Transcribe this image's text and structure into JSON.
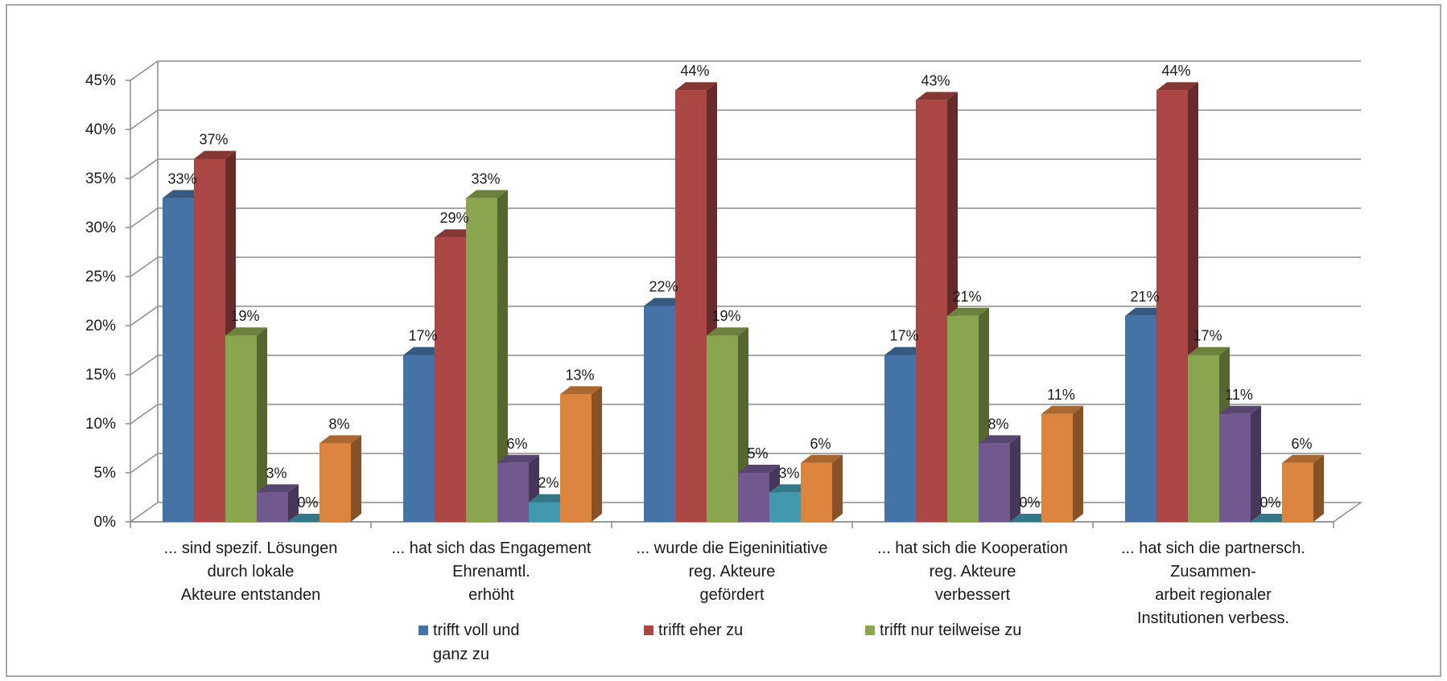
{
  "chart_data": {
    "type": "bar",
    "categories": [
      [
        "... sind spezif. Lösungen",
        "durch lokale",
        "Akteure entstanden"
      ],
      [
        "... hat sich das Engagement",
        "Ehrenamtl.",
        "erhöht"
      ],
      [
        "... wurde die Eigeninitiative",
        "reg. Akteure",
        "gefördert"
      ],
      [
        "... hat sich die Kooperation",
        "reg. Akteure",
        "verbessert"
      ],
      [
        "... hat sich die partnersch.",
        "Zusammen-",
        "arbeit regionaler",
        "Institutionen verbess."
      ]
    ],
    "series": [
      {
        "name": "trifft voll und ganz zu",
        "legend_lines": [
          "trifft voll und",
          "ganz zu"
        ],
        "color": "#4572A7",
        "values": [
          33,
          17,
          22,
          17,
          21
        ],
        "labels": [
          "33%",
          "17%",
          "22%",
          "17%",
          "21%"
        ]
      },
      {
        "name": "trifft eher zu",
        "legend_lines": [
          "trifft eher zu"
        ],
        "color": "#AA4643",
        "values": [
          37,
          29,
          44,
          43,
          44
        ],
        "labels": [
          "37%",
          "29%",
          "44%",
          "43%",
          "44%"
        ]
      },
      {
        "name": "trifft nur teilweise zu",
        "legend_lines": [
          "trifft nur teilweise zu"
        ],
        "color": "#89A54E",
        "values": [
          19,
          33,
          19,
          21,
          17
        ],
        "labels": [
          "19%",
          "33%",
          "19%",
          "21%",
          "17%"
        ]
      },
      {
        "color": "#71588F",
        "values": [
          3,
          6,
          5,
          8,
          11
        ],
        "labels": [
          "3%",
          "6%",
          "5%",
          "8%",
          "11%"
        ]
      },
      {
        "color": "#4198AF",
        "values": [
          0,
          2,
          3,
          0,
          0
        ],
        "labels": [
          "0%",
          "2%",
          "3%",
          "0%",
          "0%"
        ]
      },
      {
        "color": "#DB843D",
        "values": [
          8,
          13,
          6,
          11,
          6
        ],
        "labels": [
          "8%",
          "13%",
          "6%",
          "11%",
          "6%"
        ]
      }
    ],
    "y_ticks": [
      "0%",
      "5%",
      "10%",
      "15%",
      "20%",
      "25%",
      "30%",
      "35%",
      "40%",
      "45%"
    ],
    "ylim": [
      0,
      45
    ],
    "grid": true,
    "legend_position": "bottom",
    "style": "3d-clustered-column"
  }
}
